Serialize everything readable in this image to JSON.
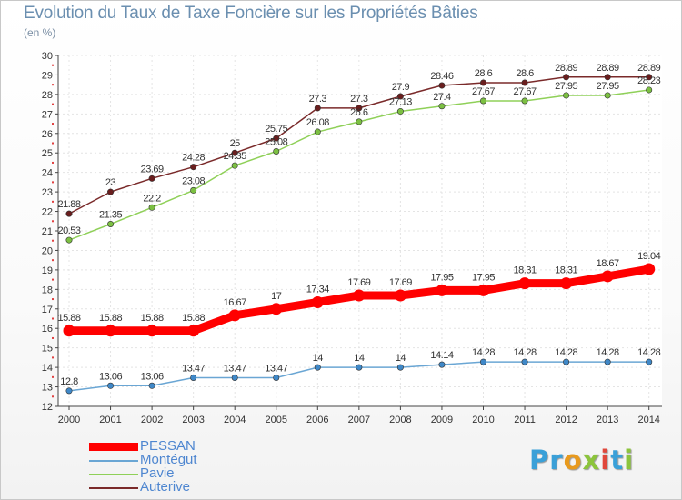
{
  "header": {
    "title": "Evolution du Taux de Taxe Foncière sur les Propriétés Bâties",
    "unit": "(en %)"
  },
  "logo": {
    "letters": [
      {
        "char": "P",
        "color": "#3aa0d8"
      },
      {
        "char": "r",
        "color": "#3aa0d8"
      },
      {
        "char": "o",
        "color": "#e89a1e"
      },
      {
        "char": "x",
        "color": "#8cc43c"
      },
      {
        "char": "i",
        "color": "#e0483c"
      },
      {
        "char": "t",
        "color": "#3aa0d8"
      },
      {
        "char": "i",
        "color": "#8cc43c"
      }
    ]
  },
  "chart_data": {
    "type": "line",
    "title": "Evolution du Taux de Taxe Foncière sur les Propriétés Bâties",
    "ylabel": "(en %)",
    "xlabel": "",
    "x": [
      "2000",
      "2001",
      "2002",
      "2003",
      "2004",
      "2005",
      "2006",
      "2007",
      "2008",
      "2009",
      "2010",
      "2011",
      "2012",
      "2013",
      "2014"
    ],
    "ylim": [
      12,
      30
    ],
    "yticks": [
      "12",
      "13",
      "14",
      "15",
      "16",
      "17",
      "18",
      "19",
      "20",
      "21",
      "22",
      "23",
      "24",
      "25",
      "26",
      "27",
      "28",
      "29",
      "30"
    ],
    "grid": true,
    "legend_position": "bottom-left",
    "series": [
      {
        "name": "Auterive",
        "color": "#7a2a2a",
        "marker": "#6a1e1e",
        "weight": "thin",
        "values": [
          21.88,
          23,
          23.69,
          24.28,
          25,
          25.75,
          27.3,
          27.3,
          27.9,
          28.46,
          28.6,
          28.6,
          28.89,
          28.89,
          28.89
        ],
        "labels": [
          "21.88",
          "23",
          "23.69",
          "24.28",
          "25",
          "25.75",
          "27.3",
          "27.3",
          "27.9",
          "28.46",
          "28.6",
          "28.6",
          "28.89",
          "28.89",
          "28.89"
        ]
      },
      {
        "name": "Pavie",
        "color": "#8fd058",
        "marker": "#7cc042",
        "weight": "thin",
        "values": [
          20.53,
          21.35,
          22.2,
          23.08,
          24.35,
          25.08,
          26.08,
          26.6,
          27.13,
          27.4,
          27.67,
          27.67,
          27.95,
          27.95,
          28.23
        ],
        "labels": [
          "20.53",
          "21.35",
          "22.2",
          "23.08",
          "24.35",
          "25.08",
          "26.08",
          "26.6",
          "27.13",
          "27.4",
          "27.67",
          "27.67",
          "27.95",
          "27.95",
          "28.23"
        ]
      },
      {
        "name": "PESSAN",
        "color": "#ff0000",
        "marker": "#ff0000",
        "weight": "thick",
        "values": [
          15.88,
          15.88,
          15.88,
          15.88,
          16.67,
          17,
          17.34,
          17.69,
          17.69,
          17.95,
          17.95,
          18.31,
          18.31,
          18.67,
          19.04
        ],
        "labels": [
          "15.88",
          "15.88",
          "15.88",
          "15.88",
          "16.67",
          "17",
          "17.34",
          "17.69",
          "17.69",
          "17.95",
          "17.95",
          "18.31",
          "18.31",
          "18.67",
          "19.04"
        ]
      },
      {
        "name": "Montégut",
        "color": "#6aa6d4",
        "marker": "#3f88c8",
        "weight": "thin",
        "values": [
          12.8,
          13.06,
          13.06,
          13.47,
          13.47,
          13.47,
          14,
          14,
          14,
          14.14,
          14.28,
          14.28,
          14.28,
          14.28,
          14.28
        ],
        "labels": [
          "12.8",
          "13.06",
          "13.06",
          "13.47",
          "13.47",
          "13.47",
          "14",
          "14",
          "14",
          "14.14",
          "14.28",
          "14.28",
          "14.28",
          "14.28",
          "14.28"
        ]
      }
    ],
    "legend": [
      "PESSAN",
      "Montégut",
      "Pavie",
      "Auterive"
    ]
  }
}
